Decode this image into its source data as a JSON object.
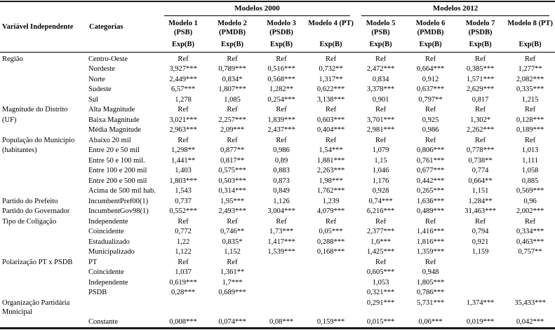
{
  "table": {
    "col_headers": {
      "variable": "Variável Independente",
      "categories": "Categorias"
    },
    "groups": [
      {
        "label": "Modelos 2000"
      },
      {
        "label": "Modelos 2012"
      }
    ],
    "models": [
      {
        "name": "Modelo 1",
        "sub": "(PSB)"
      },
      {
        "name": "Modelo 2",
        "sub": "(PMDB)"
      },
      {
        "name": "Modelo 3",
        "sub": "(PSDB)"
      },
      {
        "name": "Modelo 4 (PT)",
        "sub": ""
      },
      {
        "name": "Modelo 5",
        "sub": "(PSB)"
      },
      {
        "name": "Modelo 6",
        "sub": "(PMDB)"
      },
      {
        "name": "Modelo 7",
        "sub": "(PSDB)"
      },
      {
        "name": "Modelo 8 (PT)",
        "sub": ""
      }
    ],
    "stat_label": "Exp(B)",
    "rows": [
      {
        "variable": "Região",
        "category": "Centro-Oeste",
        "values": [
          "Ref",
          "Ref",
          "Ref",
          "Ref",
          "Ref",
          "Ref",
          "Ref",
          "Ref"
        ]
      },
      {
        "variable": "",
        "category": "Nordeste",
        "values": [
          "3,927***",
          "0,789***",
          "0,516***",
          "0,732**",
          "2,472***",
          "0,664***",
          "0,385***",
          "1,277**"
        ]
      },
      {
        "variable": "",
        "category": "Norte",
        "values": [
          "2,449***",
          "0,834*",
          "0,568***",
          "1,317**",
          "0,834",
          "0,912",
          "1,571***",
          "2,082***"
        ]
      },
      {
        "variable": "",
        "category": "Sudeste",
        "values": [
          "6,57***",
          "1,807***",
          "1,282**",
          "0,622***",
          "3,378***",
          "0,637***",
          "2,629***",
          "0,335***"
        ]
      },
      {
        "variable": "",
        "category": "Sul",
        "values": [
          "1,278",
          "1,085",
          "0,254***",
          "3,138***",
          "0,901",
          "0,797**",
          "0,817",
          "1,215"
        ]
      },
      {
        "variable": "Magnitude do Distrito",
        "category": "Alta Magnitude",
        "values": [
          "Ref",
          "Ref",
          "Ref",
          "Ref",
          "Ref",
          "Ref",
          "Ref",
          "Ref"
        ]
      },
      {
        "variable": "(UF)",
        "category": "Baixa Magnitude",
        "values": [
          "3,021***",
          "2,257***",
          "1,839***",
          "0,603***",
          "3,701***",
          "0,925",
          "1,302*",
          "0,128***"
        ]
      },
      {
        "variable": "",
        "category": "Média Magnitude",
        "values": [
          "2,963***",
          "2,09***",
          "2,437***",
          "0,404***",
          "2,981***",
          "0,986",
          "2,262***",
          "0,189***"
        ]
      },
      {
        "variable": "População do Município",
        "category": "Abaixo 20 mil",
        "values": [
          "Ref",
          "Ref",
          "Ref",
          "Ref",
          "Ref",
          "Ref",
          "Ref",
          "Ref"
        ]
      },
      {
        "variable": "(habitantes)",
        "category": "Entre 20 e 50 mil",
        "values": [
          "1,298**",
          "0,877**",
          "0,986",
          "1,54***",
          "1,079",
          "0,806***",
          "0,778***",
          "1,013"
        ]
      },
      {
        "variable": "",
        "category": "Entre 50 e 100 mil.",
        "values": [
          "1,441**",
          "0,817**",
          "0,89",
          "1,881***",
          "1,15",
          "0,761***",
          "0,738**",
          "1,111"
        ]
      },
      {
        "variable": "",
        "category": "Entre 100 e 200 mil",
        "values": [
          "1,403",
          "0,575***",
          "0,883",
          "2,263***",
          "1,046",
          "0,677***",
          "0,774",
          "1,058"
        ]
      },
      {
        "variable": "",
        "category": "Entre 200 e 500 mil",
        "values": [
          "1,803***",
          "0,503***",
          "0,873",
          "1,98***",
          "1,176",
          "0,442***",
          "0,664**",
          "0,885"
        ]
      },
      {
        "variable": "",
        "category": "Acima de 500 mil hab.",
        "values": [
          "1,543",
          "0,314***",
          "0,849",
          "1,762***",
          "0,928",
          "0,265***",
          "1,151",
          "0,569***"
        ]
      },
      {
        "variable": "Partido do Prefeito",
        "category": "IncumbentPref00(1)",
        "values": [
          "0,737",
          "1,95***",
          "1,126",
          "1,239",
          "0,74***",
          "1,636***",
          "1,284**",
          "0,96"
        ]
      },
      {
        "variable": "Partido do Governador",
        "category": "IncumbentGov98(1)",
        "values": [
          "0,552***",
          "2,493***",
          "3,004***",
          "4,079***",
          "6,216***",
          "0,489***",
          "31,463***",
          "2,002***"
        ]
      },
      {
        "variable": "Tipo de Coligação",
        "category": "Independente",
        "values": [
          "Ref",
          "Ref",
          "Ref",
          "Ref",
          "Ref",
          "Ref",
          "Ref",
          "Ref"
        ]
      },
      {
        "variable": "",
        "category": "Coincidente",
        "values": [
          "0,772",
          "0,746**",
          "1,73***",
          "0,05***",
          "2,377***",
          "1,416***",
          "0,794",
          "0,334***"
        ]
      },
      {
        "variable": "",
        "category": "Estadualizado",
        "values": [
          "1,22",
          "0,835*",
          "1,417***",
          "0,288***",
          "1,6***",
          "1,816***",
          "0,921",
          "0,463***"
        ]
      },
      {
        "variable": "",
        "category": "Municipalizado",
        "values": [
          "1,122",
          "1,152",
          "1,539***",
          "0,168***",
          "1,425***",
          "1,359***",
          "1,159",
          "0,757**"
        ]
      },
      {
        "variable": "Polarização PT x PSDB",
        "category": "PT",
        "values": [
          "Ref",
          "Ref",
          "",
          "",
          "Ref",
          "Ref",
          "",
          ""
        ]
      },
      {
        "variable": "",
        "category": "Coincidente",
        "values": [
          "1,037",
          "1,361**",
          "",
          "",
          "0,605***",
          "0,948",
          "",
          ""
        ]
      },
      {
        "variable": "",
        "category": "Independente",
        "values": [
          "0,619***",
          "1,7***",
          "",
          "",
          "1,053",
          "1,805***",
          "",
          ""
        ]
      },
      {
        "variable": "",
        "category": "PSDB",
        "values": [
          "0,28***",
          "0,689***",
          "",
          "",
          "0,321***",
          "0,786***",
          "",
          ""
        ]
      },
      {
        "variable": "Organização Partidária Municipal",
        "category": "",
        "values": [
          "",
          "",
          "",
          "",
          "0,291***",
          "5,731***",
          "1,374***",
          "35,433***"
        ]
      },
      {
        "variable": "",
        "category": "Constante",
        "values": [
          "0,008***",
          "0,074***",
          "0,08***",
          "0,159***",
          "0,015***",
          "0,06***",
          "0,019***",
          "0,042***"
        ]
      }
    ]
  }
}
